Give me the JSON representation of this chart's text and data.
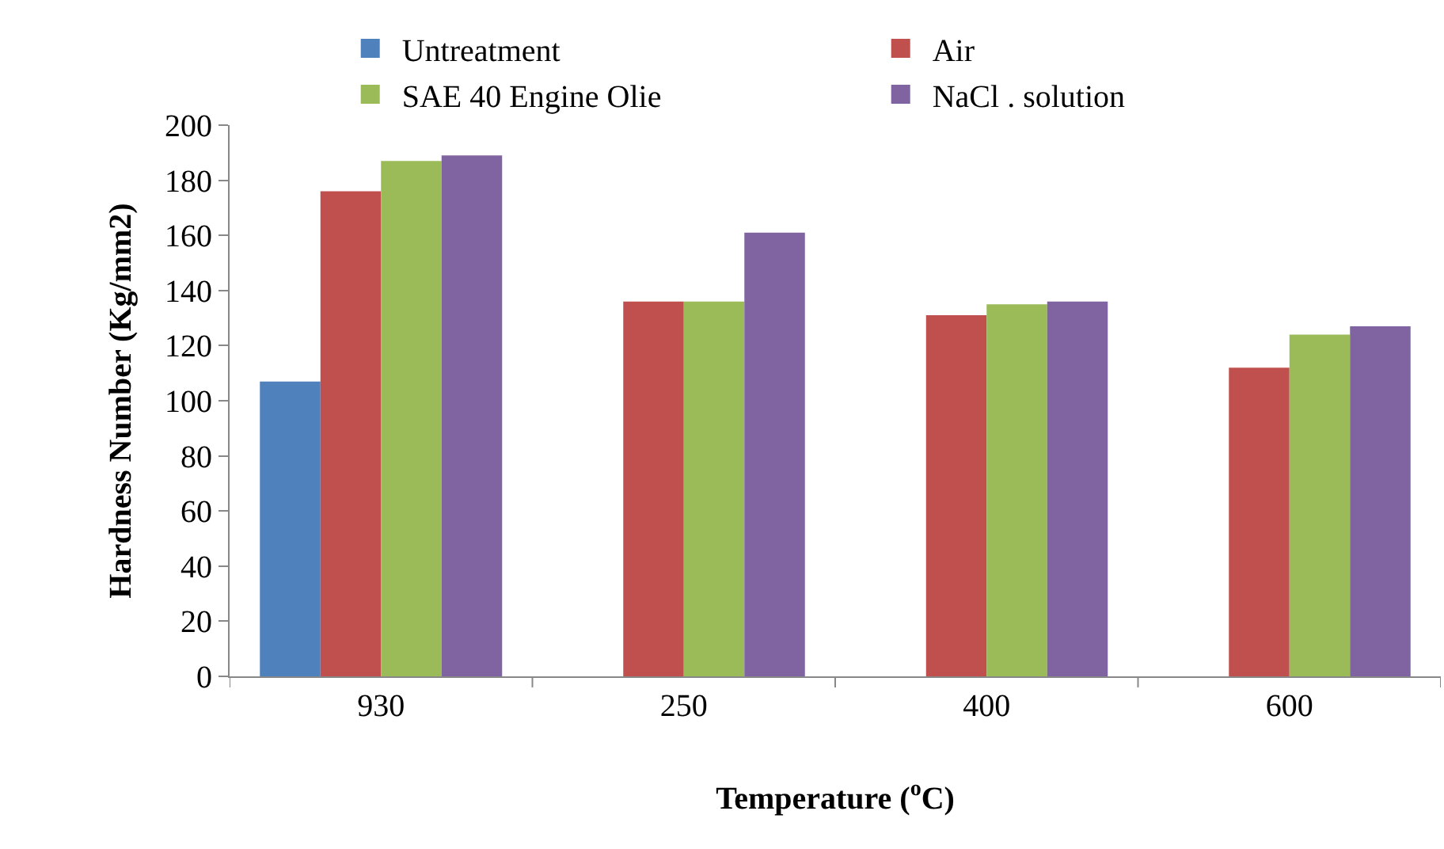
{
  "chart_data": {
    "type": "bar",
    "xlabel": "Temperature ($^{o}$C)",
    "ylabel": "Hardness Number (Kg/mm2)",
    "categories": [
      "930",
      "250",
      "400",
      "600"
    ],
    "series": [
      {
        "name": "Untreatment",
        "color": "#4f81bd",
        "values": [
          107,
          null,
          null,
          null
        ]
      },
      {
        "name": "Air",
        "color": "#c0504d",
        "values": [
          176,
          136,
          131,
          112
        ]
      },
      {
        "name": "SAE 40 Engine Olie",
        "color": "#9bbb59",
        "values": [
          187,
          136,
          135,
          124
        ]
      },
      {
        "name": "NaCl . solution",
        "color": "#8064a2",
        "values": [
          189,
          161,
          136,
          127
        ]
      }
    ],
    "ylim": [
      0,
      200
    ],
    "yticks": [
      0,
      20,
      40,
      60,
      80,
      100,
      120,
      140,
      160,
      180,
      200
    ],
    "legend": "top"
  }
}
